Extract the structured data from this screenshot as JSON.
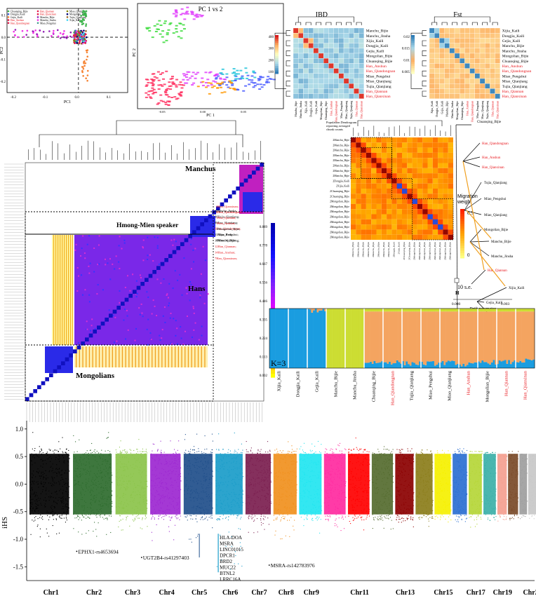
{
  "pca1": {
    "xlabel": "PC1",
    "ylabel": "PC2",
    "xticks": [
      "-0.2",
      "-0.1",
      "0.0",
      "0.1"
    ],
    "yticks": [
      "0.1",
      "0.0",
      "-0.1",
      "-0.2"
    ],
    "legend": [
      {
        "label": "Chuanqing_Bijie",
        "color": "#3cb44b"
      },
      {
        "label": "Dongjia_Kaili",
        "color": "#4363d8"
      },
      {
        "label": "Gejia_Kaili",
        "color": "#f58231"
      },
      {
        "label": "Han_Anshun",
        "color": "#e6194b"
      },
      {
        "label": "Han_Qiandongnan",
        "color": "#e6194b"
      },
      {
        "label": "Han_Qiannan",
        "color": "#e6194b"
      },
      {
        "label": "Han_Qianxinan",
        "color": "#e6194b"
      },
      {
        "label": "Manchu_Bijie",
        "color": "#911eb4"
      },
      {
        "label": "Manchu_Jinsha",
        "color": "#f032e6"
      },
      {
        "label": "Miao_Pengshui",
        "color": "#469990"
      },
      {
        "label": "Miao_Qianjiang",
        "color": "#808000"
      },
      {
        "label": "Mongolian_Bijie",
        "color": "#000075"
      },
      {
        "label": "Tujia_Qianjiang",
        "color": "#9a6324"
      },
      {
        "label": "Xijia_Kaili",
        "color": "#42d4f4"
      }
    ]
  },
  "pca2": {
    "title": "PC 1 vs 2",
    "xlabel": "PC 1",
    "ylabel": "PC 2",
    "xticks": [
      "-0.05",
      "0.00",
      "0.05"
    ]
  },
  "ibd": {
    "title": "IBD",
    "rows": [
      "Manchu_Bijie",
      "Manchu_Jinsha",
      "Xijia_Kaili",
      "Dongjia_Kaili",
      "Gejia_Kaili",
      "Mongolian_Bijie",
      "Chuanqing_Bijie",
      "Han_Anshun",
      "Han_Qiandongnan",
      "Miao_Pengshui",
      "Miao_Qianjiang",
      "Tujia_Qianjiang",
      "Han_Qiannan",
      "Han_Qianxinan"
    ],
    "red_rows": [
      "Han_Anshun",
      "Han_Qiandongnan",
      "Han_Qiannan",
      "Han_Qianxinan"
    ],
    "scale": [
      "400",
      "300",
      "200",
      "100"
    ]
  },
  "fst": {
    "title": "Fst",
    "rows": [
      "Xijia_Kaili",
      "Dongjia_Kaili",
      "Gejia_Kaili",
      "Manchu_Bijie",
      "Manchu_Jinsha",
      "Mongolian_Bijie",
      "Chuanqing_Bijie",
      "Han_Anshun",
      "Han_Qiandongnan",
      "Miao_Pengshui",
      "Miao_Qianjiang",
      "Tujia_Qianjiang",
      "Han_Qiannan",
      "Han_Qianxinan"
    ],
    "red_rows": [
      "Han_Anshun",
      "Han_Qiandongnan",
      "Han_Qiannan",
      "Han_Qianxinan"
    ],
    "scale": [
      "0.02",
      "0.015",
      "0.01",
      "0.005"
    ]
  },
  "finestructure": {
    "group_labels": [
      "Manchus",
      "Hmong-Mien speaker",
      "Hans",
      "Mongolians"
    ],
    "scale": [
      "0.889",
      "0.778",
      "0.667",
      "0.556",
      "0.446",
      "0.335",
      "0.224",
      "0.113",
      "0.002"
    ],
    "manchu_list": [
      {
        "t": "1Manchu_Jinsha",
        "red": false
      },
      {
        "t": "30Tujia_Qianjiang;",
        "red": false
      },
      {
        "t": "8Miao_Qianjiang;",
        "red": false
      },
      {
        "t": "6Han_Qiandongnan;",
        "red": true
      },
      {
        "t": "11Miao_Pengshui;",
        "red": false
      },
      {
        "t": "16Miao_Qianjiang;",
        "red": false
      },
      {
        "t": "12Han_Qiannan;",
        "red": true
      },
      {
        "t": "14Han_Anshun;",
        "red": true
      },
      {
        "t": "7Han_Qianxinan;",
        "red": true
      }
    ],
    "hm_list": [
      {
        "t": "2Han_Qianxinan;",
        "red": true
      },
      {
        "t": "4Han_Qiandongnan;",
        "red": true
      },
      {
        "t": "1Han_Qiannan;",
        "red": true
      },
      {
        "t": "1Han_Anshun;",
        "red": true
      },
      {
        "t": "1Mongolian_Bijie;",
        "red": false
      },
      {
        "t": "1Xijia_Kaili;",
        "red": false
      },
      {
        "t": "1Manchu_Bijie",
        "red": false
      }
    ]
  },
  "migration": {
    "title": "Population Dendrogram\nreporting averaged\nchunk counts",
    "row_labels": [
      "2Manchu_Bijie",
      "2Manchu_Bijie",
      "2Manchu_Bijie",
      "2Manchu_Bijie",
      "2Manchu_Bijie",
      "2Manchu_Bijie",
      "2Manchu_Bijie",
      "2Manchu_Bijie",
      "2Dongjia_Kaili",
      "2Xijia_Kaili",
      "2Chuanqing_Bijie",
      "2Chuanqing_Bijie",
      "2Mongolian_Bijie",
      "2Mongolian_Bijie",
      "2Mongolian_Bijie",
      "2Mongolian_Bijie",
      "2Mongolian_Bijie",
      "2Mongolian_Bijie",
      "2Mongolian_Bijie",
      "2Mongolian_Bijie"
    ],
    "weight_label": "Migration\nweight",
    "weight_ticks": [
      "0.5",
      "0"
    ]
  },
  "treemix": {
    "leaves": [
      {
        "t": "Chuanqing_Bijie",
        "red": false
      },
      {
        "t": "Han_Qiandongnan",
        "red": true
      },
      {
        "t": "Han_Anshun",
        "red": true
      },
      {
        "t": "Han_Qianxinan",
        "red": true
      },
      {
        "t": "Tujia_Qianjiang",
        "red": false
      },
      {
        "t": "Miao_Pengshui",
        "red": false
      },
      {
        "t": "Miao_Qianjiang",
        "red": false
      },
      {
        "t": "Mongolian_Bijie",
        "red": false
      },
      {
        "t": "Manchu_Bijie",
        "red": false
      },
      {
        "t": "Manchu_Jinsha",
        "red": false
      },
      {
        "t": "Han_Qiannan",
        "red": true
      },
      {
        "t": "Xijia_Kaili",
        "red": false
      },
      {
        "t": "Gejia_Kaili",
        "red": false
      },
      {
        "t": "Dongjia_Kaili",
        "red": false
      }
    ],
    "se_label": "10 s.e.",
    "h_label": "H",
    "xlabel": "Drift parameter",
    "xticks": [
      "0.000",
      "0.003"
    ]
  },
  "admixture": {
    "k_label": "K=3",
    "groups": [
      {
        "t": "Xijia_Kaili",
        "red": false,
        "blue": 1.0,
        "orange": 0.0,
        "yellow": 0.0
      },
      {
        "t": "Dongjia_Kaili",
        "red": false,
        "blue": 1.0,
        "orange": 0.0,
        "yellow": 0.0
      },
      {
        "t": "Gejia_Kaili",
        "red": false,
        "blue": 0.97,
        "orange": 0.03,
        "yellow": 0.0
      },
      {
        "t": "Manchu_Bijie",
        "red": false,
        "blue": 0.0,
        "orange": 0.0,
        "yellow": 1.0
      },
      {
        "t": "Manchu_Jinsha",
        "red": false,
        "blue": 0.0,
        "orange": 0.0,
        "yellow": 1.0
      },
      {
        "t": "Chuanqing_Bijie",
        "red": false,
        "blue": 0.1,
        "orange": 0.85,
        "yellow": 0.05
      },
      {
        "t": "Han_Qiandongnan",
        "red": true,
        "blue": 0.1,
        "orange": 0.85,
        "yellow": 0.05
      },
      {
        "t": "Tujia_Qianjiang",
        "red": false,
        "blue": 0.08,
        "orange": 0.87,
        "yellow": 0.05
      },
      {
        "t": "Miao_Pengshui",
        "red": false,
        "blue": 0.08,
        "orange": 0.87,
        "yellow": 0.05
      },
      {
        "t": "Miao_Qianjiang",
        "red": false,
        "blue": 0.09,
        "orange": 0.86,
        "yellow": 0.05
      },
      {
        "t": "Han_Anshun",
        "red": true,
        "blue": 0.06,
        "orange": 0.89,
        "yellow": 0.05
      },
      {
        "t": "Mongolian_Bijie",
        "red": false,
        "blue": 0.1,
        "orange": 0.85,
        "yellow": 0.05
      },
      {
        "t": "Han_Qiannan",
        "red": true,
        "blue": 0.1,
        "orange": 0.85,
        "yellow": 0.05
      },
      {
        "t": "Han_Qianxinan",
        "red": true,
        "blue": 0.12,
        "orange": 0.83,
        "yellow": 0.05
      }
    ],
    "colors": {
      "blue": "#1a9de0",
      "orange": "#f4a460",
      "yellow": "#ccdd33"
    }
  },
  "chart_data": {
    "type": "scatter",
    "title": "",
    "xlabel": "",
    "ylabel": "iHS",
    "ylim": [
      -1.75,
      1.15
    ],
    "yticks": [
      "1.0",
      "0.5",
      "0.0",
      "-0.5",
      "-1.0",
      "-1.5"
    ],
    "categories": [
      "Chr1",
      "Chr2",
      "Chr3",
      "Chr4",
      "Chr5",
      "Chr6",
      "Chr7",
      "Chr8",
      "Chr9",
      "Chr11",
      "Chr13",
      "Chr15",
      "Chr17",
      "Chr19",
      "Chr22"
    ],
    "chromosomes": [
      {
        "n": 1,
        "color": "#000000",
        "label": "Chr1",
        "min": -1.0,
        "max": 0.95
      },
      {
        "n": 2,
        "color": "#2e6b2e",
        "label": "Chr2",
        "min": -0.95,
        "max": 0.97
      },
      {
        "n": 3,
        "color": "#8bc34a",
        "label": "Chr3",
        "min": -0.85,
        "max": 0.9
      },
      {
        "n": 4,
        "color": "#9c27d0",
        "label": "Chr4",
        "min": -1.05,
        "max": 0.85
      },
      {
        "n": 5,
        "color": "#1f4e8a",
        "label": "Chr5",
        "min": -1.05,
        "max": 0.92
      },
      {
        "n": 6,
        "color": "#1a9cc9",
        "label": "Chr6",
        "min": -1.6,
        "max": 1.0
      },
      {
        "n": 7,
        "color": "#7b1e4f",
        "label": "Chr7",
        "min": -0.9,
        "max": 0.82
      },
      {
        "n": 8,
        "color": "#f0901e",
        "label": "Chr8",
        "min": -1.0,
        "max": 0.82
      },
      {
        "n": 9,
        "color": "#22e5f0",
        "label": "Chr9",
        "min": -0.9,
        "max": 0.8
      },
      {
        "n": 10,
        "color": "#ff2aa0",
        "label": "",
        "min": -0.85,
        "max": 0.78
      },
      {
        "n": 11,
        "color": "#ff0000",
        "label": "Chr11",
        "min": -0.9,
        "max": 0.85
      },
      {
        "n": 12,
        "color": "#556b2f",
        "label": "",
        "min": -0.85,
        "max": 0.8
      },
      {
        "n": 13,
        "color": "#8b0000",
        "label": "Chr13",
        "min": -0.8,
        "max": 0.7
      },
      {
        "n": 14,
        "color": "#8b7d1a",
        "label": "",
        "min": -0.8,
        "max": 0.72
      },
      {
        "n": 15,
        "color": "#f5f000",
        "label": "Chr15",
        "min": -0.78,
        "max": 0.62
      },
      {
        "n": 16,
        "color": "#2b6fd1",
        "label": "",
        "min": -0.75,
        "max": 0.65
      },
      {
        "n": 17,
        "color": "#b5d638",
        "label": "Chr17",
        "min": -0.78,
        "max": 0.6
      },
      {
        "n": 18,
        "color": "#3cb0a8",
        "label": "",
        "min": -0.7,
        "max": 0.58
      },
      {
        "n": 19,
        "color": "#f4a090",
        "label": "Chr19",
        "min": -0.7,
        "max": 0.52
      },
      {
        "n": 20,
        "color": "#7a4a28",
        "label": "",
        "min": -0.68,
        "max": 0.6
      },
      {
        "n": 21,
        "color": "#9e9e9e",
        "label": "",
        "min": -0.62,
        "max": 0.55
      },
      {
        "n": 22,
        "color": "#c8c8c8",
        "label": "Chr22",
        "min": -0.62,
        "max": 0.52
      }
    ],
    "annotations": [
      {
        "chr": 1,
        "y": -1.22,
        "text": "EPHX1-rs4653694"
      },
      {
        "chr": 5,
        "y": -1.33,
        "text": "UGT2B4-rs41297403"
      },
      {
        "chr": 6,
        "y": -1.55,
        "text": "HLA-DOA"
      },
      {
        "chr": 8,
        "y": -1.47,
        "text": "MSRA-rs142783976"
      }
    ],
    "chr6_genes": [
      "HLA-DOA",
      "MSRA",
      "LINC01015",
      "DPCR1",
      "BRD2",
      "MUC22",
      "BTNL2",
      "LRRC16A"
    ]
  }
}
